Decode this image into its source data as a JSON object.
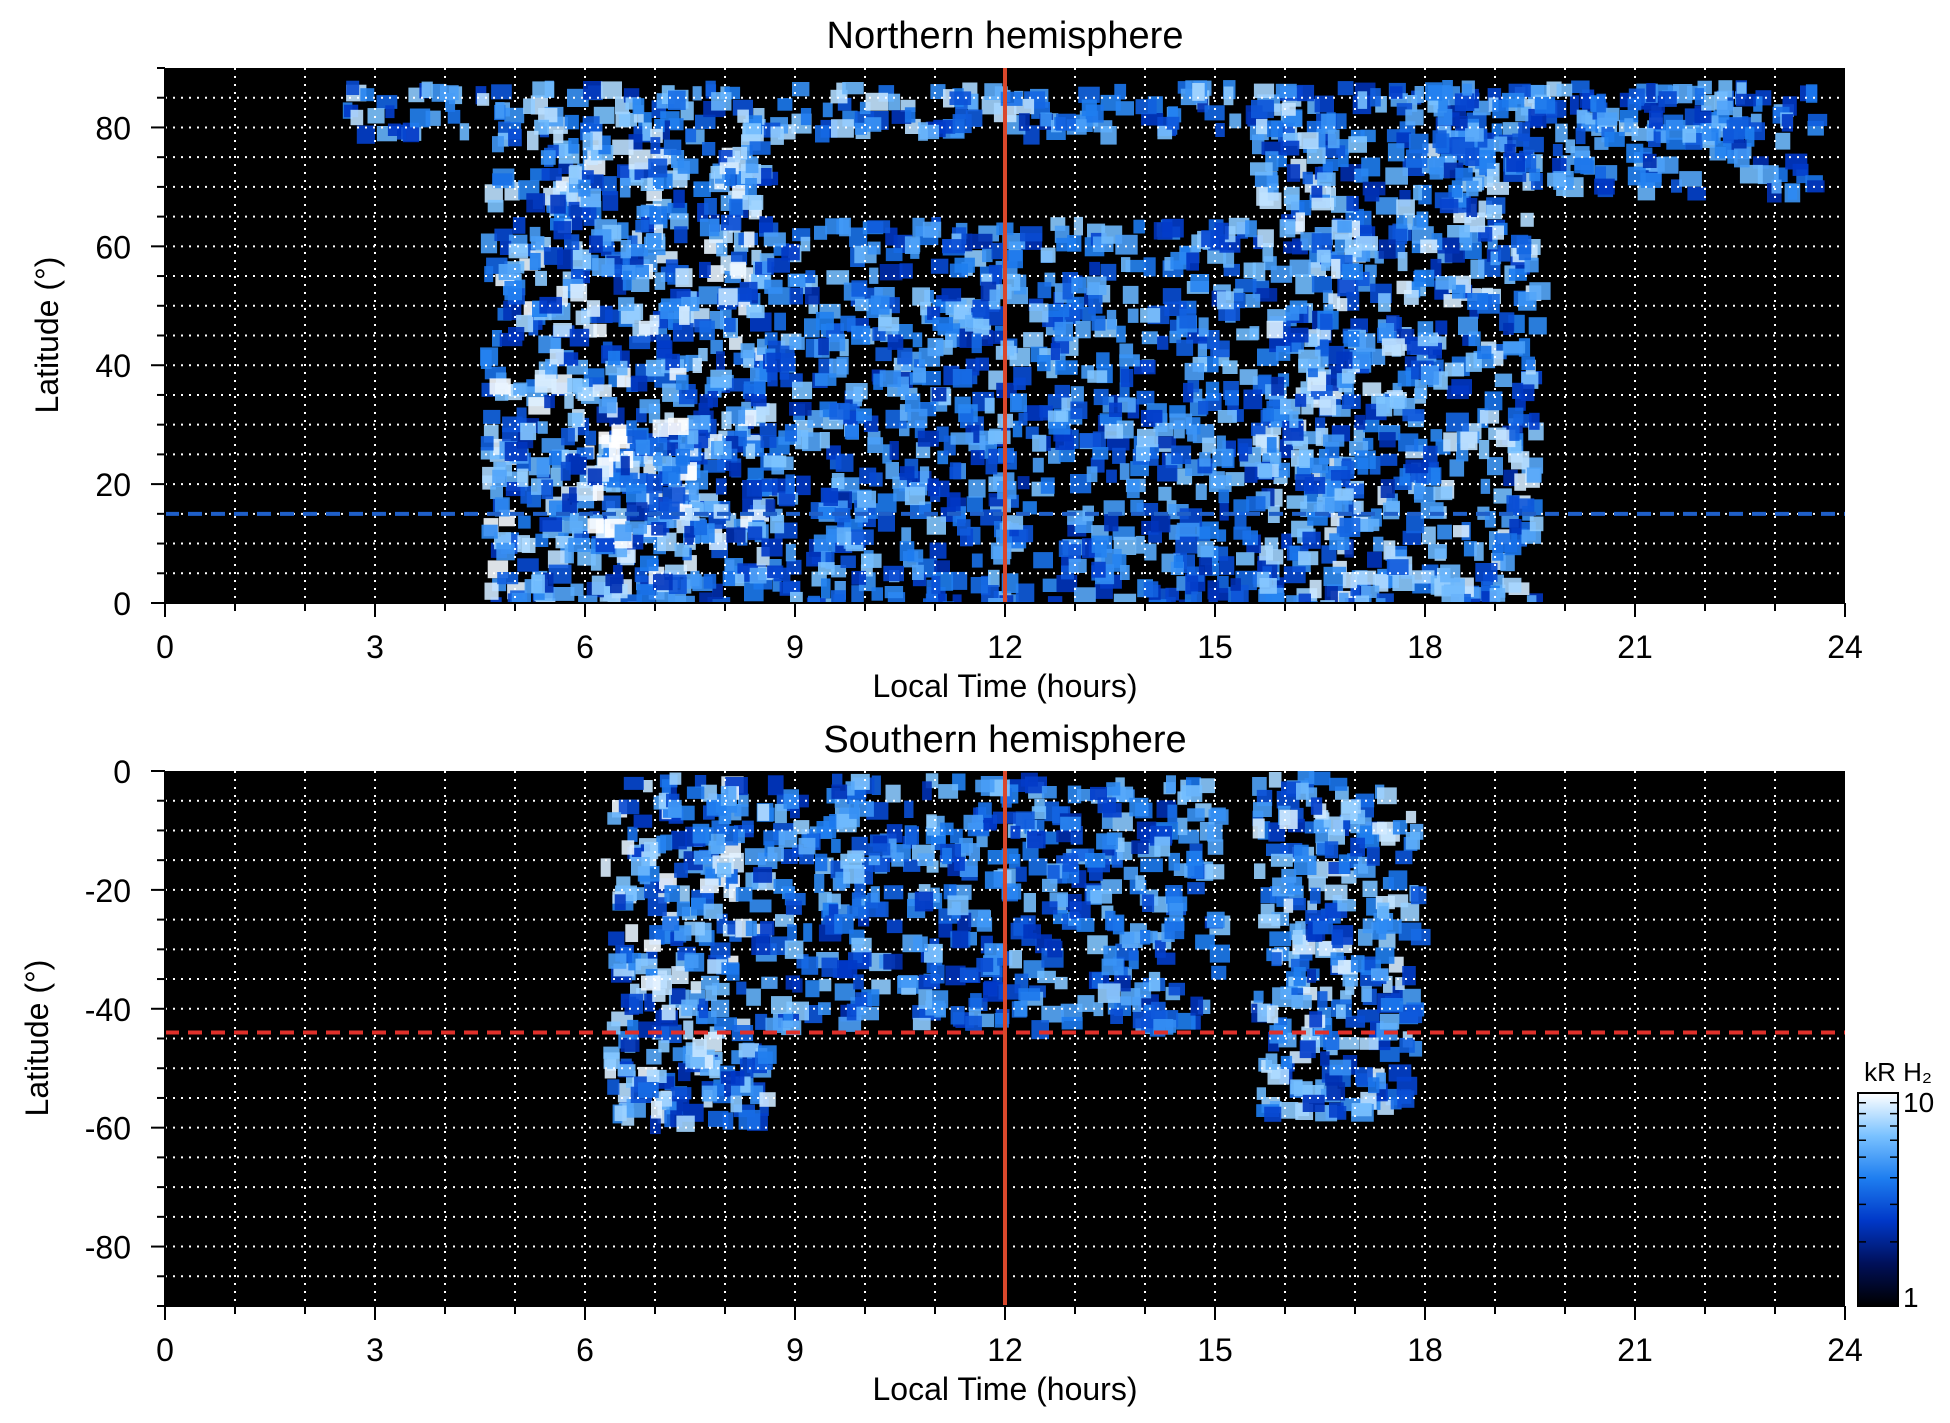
{
  "chart_data": [
    {
      "type": "heatmap",
      "title": "Northern hemisphere",
      "xlabel": "Local Time (hours)",
      "ylabel": "Latitude (°)",
      "xlim": [
        0,
        24
      ],
      "ylim": [
        0,
        90
      ],
      "xticks": [
        0,
        3,
        6,
        9,
        12,
        15,
        18,
        21,
        24
      ],
      "yticks": [
        0,
        20,
        40,
        60,
        80
      ],
      "grid": true,
      "noon_line": 12,
      "reference_latitude": 15,
      "reference_color": "#1f5fc8",
      "emission_regions": [
        {
          "lt": [
            2.5,
            22.5
          ],
          "lat": [
            80,
            88
          ],
          "level": 0.75
        },
        {
          "lt": [
            4.5,
            8.5
          ],
          "lat": [
            0,
            80
          ],
          "level": 0.85
        },
        {
          "lt": [
            15.5,
            19.5
          ],
          "lat": [
            0,
            80
          ],
          "level": 0.8
        },
        {
          "lt": [
            8.5,
            15.5
          ],
          "lat": [
            0,
            65
          ],
          "level": 0.65
        },
        {
          "lt": [
            6.0,
            7.5
          ],
          "lat": [
            10,
            32
          ],
          "level": 1.0
        },
        {
          "lt": [
            18.0,
            23.5
          ],
          "lat": [
            70,
            88
          ],
          "level": 0.6
        }
      ]
    },
    {
      "type": "heatmap",
      "title": "Southern hemisphere",
      "xlabel": "Local Time (hours)",
      "ylabel": "Latitude (°)",
      "xlim": [
        0,
        24
      ],
      "ylim": [
        -90,
        0
      ],
      "xticks": [
        0,
        3,
        6,
        9,
        12,
        15,
        18,
        21,
        24
      ],
      "yticks": [
        0,
        -20,
        -40,
        -60,
        -80
      ],
      "grid": true,
      "noon_line": 12,
      "reference_latitude": -44,
      "reference_color": "#e0302a",
      "emission_regions": [
        {
          "lt": [
            6.2,
            8.5
          ],
          "lat": [
            -58,
            0
          ],
          "level": 0.85
        },
        {
          "lt": [
            15.5,
            17.8
          ],
          "lat": [
            -57,
            0
          ],
          "level": 0.8
        },
        {
          "lt": [
            8.5,
            15.0
          ],
          "lat": [
            -42,
            0
          ],
          "level": 0.65
        }
      ]
    }
  ],
  "colorbar": {
    "label": "kR H₂",
    "min_label": "1",
    "max_label": "10",
    "scale": "log",
    "range": [
      1,
      10
    ],
    "colors": [
      "#000000",
      "#00105a",
      "#0038c8",
      "#1e7ef0",
      "#7ac2ff",
      "#ffffff"
    ]
  },
  "colors": {
    "noon_line": "#d9472b",
    "grid": "#ffffff",
    "background": "#000000"
  }
}
